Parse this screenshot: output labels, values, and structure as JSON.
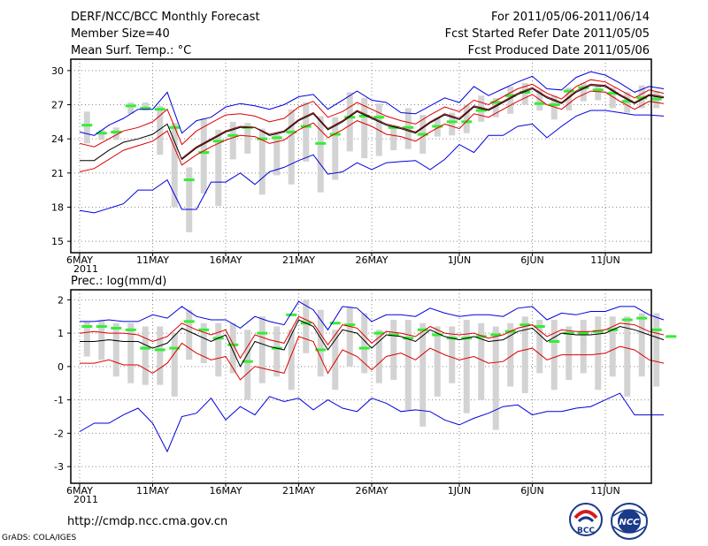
{
  "header": {
    "title": "DERF/NCC/BCC Monthly Forecast",
    "member": "Member Size=40",
    "variable": "Mean Surf. Temp.: °C",
    "period": "For 2011/05/06-2011/06/14",
    "started": "Fcst Started Refer Date 2011/05/05",
    "produced": "Fcst Produced Date 2011/05/06"
  },
  "footer": {
    "url": "http://cmdp.ncc.cma.gov.cn",
    "credit": "GrADS: COLA/IGES",
    "logo_bcc": "BCC",
    "logo_ncc": "NCC"
  },
  "colors": {
    "box": "#d3d3d3",
    "green": "#33ee33",
    "ensemble_mean": "#000000",
    "red": "#dd0000",
    "blue": "#0000dd"
  },
  "chart_data": [
    {
      "type": "line",
      "title": "Mean Surf. Temp.: °C",
      "ylim": [
        14,
        31
      ],
      "yticks": [
        15,
        18,
        21,
        24,
        27,
        30
      ],
      "xtick_labels": [
        {
          "day": 0,
          "label": "6MAY"
        },
        {
          "day": 5,
          "label": "11MAY"
        },
        {
          "day": 10,
          "label": "16MAY"
        },
        {
          "day": 15,
          "label": "21MAY"
        },
        {
          "day": 20,
          "label": "26MAY"
        },
        {
          "day": 26,
          "label": "1JUN"
        },
        {
          "day": 31,
          "label": "6JUN"
        },
        {
          "day": 36,
          "label": "11JUN"
        }
      ],
      "year_label": "2011",
      "series": [
        {
          "name": "black",
          "color": "#000000",
          "values": [
            22.1,
            22.1,
            23.0,
            23.7,
            24.0,
            24.4,
            25.3,
            22.2,
            23.2,
            23.9,
            24.6,
            25.0,
            25.0,
            24.3,
            24.6,
            25.6,
            26.2,
            24.8,
            25.5,
            26.4,
            25.8,
            25.2,
            24.9,
            24.5,
            25.4,
            26.1,
            25.7,
            26.8,
            26.5,
            27.2,
            27.9,
            28.4,
            27.6,
            27.1,
            28.1,
            28.7,
            28.6,
            27.8,
            27.1,
            27.8,
            27.6
          ]
        },
        {
          "name": "dark-red",
          "color": "#880000",
          "values": [
            null,
            null,
            null,
            null,
            null,
            null,
            null,
            22.3,
            23.3,
            24.0,
            24.7,
            25.1,
            25.0,
            24.4,
            24.7,
            25.7,
            26.3,
            24.9,
            25.6,
            26.5,
            25.9,
            25.3,
            25.0,
            24.6,
            25.5,
            26.2,
            25.8,
            26.9,
            26.6,
            27.3,
            28.0,
            28.5,
            27.7,
            27.2,
            28.2,
            28.8,
            28.7,
            27.9,
            27.2,
            27.9,
            27.7
          ]
        },
        {
          "name": "red-lower",
          "color": "#dd0000",
          "values": [
            21.1,
            21.4,
            22.2,
            23.0,
            23.4,
            23.8,
            24.7,
            21.7,
            22.6,
            23.3,
            23.9,
            24.3,
            24.2,
            23.6,
            23.9,
            24.8,
            25.4,
            24.1,
            24.8,
            25.6,
            25.1,
            24.4,
            24.2,
            23.8,
            24.6,
            25.3,
            24.9,
            26.2,
            25.9,
            26.6,
            27.3,
            27.9,
            27.0,
            26.6,
            27.6,
            28.2,
            28.1,
            27.3,
            26.6,
            27.3,
            27.1
          ]
        },
        {
          "name": "red-upper",
          "color": "#dd0000",
          "values": [
            23.6,
            23.3,
            24.0,
            24.7,
            25.0,
            25.5,
            26.6,
            23.5,
            24.7,
            25.4,
            26.1,
            26.2,
            26.0,
            25.5,
            25.8,
            26.8,
            27.3,
            25.9,
            26.4,
            27.2,
            26.6,
            26.0,
            25.6,
            25.3,
            26.1,
            26.8,
            26.4,
            27.4,
            27.0,
            27.7,
            28.4,
            28.8,
            28.0,
            27.5,
            28.6,
            29.2,
            29.0,
            28.3,
            27.6,
            28.3,
            28.0
          ]
        },
        {
          "name": "blue-lower",
          "color": "#0000dd",
          "values": [
            17.7,
            17.5,
            17.9,
            18.3,
            19.5,
            19.5,
            20.4,
            17.8,
            17.8,
            20.2,
            20.2,
            21.0,
            20.0,
            21.1,
            21.5,
            22.1,
            22.6,
            20.9,
            21.1,
            21.9,
            21.3,
            21.9,
            22.0,
            22.1,
            21.3,
            22.2,
            23.5,
            22.8,
            24.3,
            24.3,
            25.1,
            25.3,
            24.1,
            25.1,
            26.0,
            26.5,
            26.5,
            26.3,
            26.1,
            26.1,
            26.0
          ]
        },
        {
          "name": "blue-upper",
          "color": "#0000dd",
          "values": [
            24.6,
            24.3,
            25.2,
            25.8,
            26.6,
            26.6,
            28.1,
            24.5,
            25.6,
            25.9,
            26.8,
            27.1,
            26.9,
            26.6,
            27.0,
            27.7,
            27.9,
            26.6,
            27.4,
            28.2,
            27.4,
            27.2,
            26.3,
            26.2,
            26.9,
            27.6,
            27.2,
            28.6,
            27.8,
            28.4,
            29.0,
            29.5,
            28.4,
            28.3,
            29.4,
            29.9,
            29.6,
            28.9,
            28.1,
            28.6,
            28.4
          ]
        }
      ],
      "boxes": [
        {
          "low": 23.6,
          "high": 26.4
        },
        {
          "low": 23.9,
          "high": 24.8
        },
        {
          "low": 23.9,
          "high": 25.0
        },
        {
          "low": 26.2,
          "high": 27.2
        },
        {
          "low": 26.5,
          "high": 27.2
        },
        {
          "low": 22.6,
          "high": 26.9
        },
        {
          "low": 18.0,
          "high": 25.4
        },
        {
          "low": 15.8,
          "high": 21.5
        },
        {
          "low": 19.2,
          "high": 25.8
        },
        {
          "low": 18.1,
          "high": 24.8
        },
        {
          "low": 22.2,
          "high": 25.5
        },
        {
          "low": 22.7,
          "high": 25.4
        },
        {
          "low": 19.1,
          "high": 24.9
        },
        {
          "low": 20.8,
          "high": 24.4
        },
        {
          "low": 20.0,
          "high": 26.6
        },
        {
          "low": 22.0,
          "high": 27.2
        },
        {
          "low": 19.3,
          "high": 26.0
        },
        {
          "low": 20.4,
          "high": 25.9
        },
        {
          "low": 22.9,
          "high": 28.1
        },
        {
          "low": 22.3,
          "high": 27.6
        },
        {
          "low": 22.5,
          "high": 27.1
        },
        {
          "low": 23.0,
          "high": 25.1
        },
        {
          "low": 23.1,
          "high": 26.7
        },
        {
          "low": 22.7,
          "high": 26.1
        },
        {
          "low": 24.2,
          "high": 25.8
        },
        {
          "low": 24.3,
          "high": 26.3
        },
        {
          "low": 24.5,
          "high": 27.0
        },
        {
          "low": 25.5,
          "high": 27.8
        },
        {
          "low": 25.9,
          "high": 27.6
        },
        {
          "low": 26.2,
          "high": 28.6
        },
        {
          "low": 27.0,
          "high": 28.9
        },
        {
          "low": 26.5,
          "high": 28.3
        },
        {
          "low": 25.7,
          "high": 27.8
        },
        {
          "low": 26.5,
          "high": 28.5
        },
        {
          "low": 27.3,
          "high": 28.9
        },
        {
          "low": 27.4,
          "high": 28.7
        },
        {
          "low": 26.7,
          "high": 28.5
        },
        {
          "low": 26.3,
          "high": 28.1
        },
        {
          "low": 26.7,
          "high": 28.7
        },
        {
          "low": 26.7,
          "high": 28.2
        }
      ],
      "green_marks": [
        25.2,
        24.5,
        24.6,
        26.9,
        26.7,
        26.6,
        25.0,
        20.4,
        22.8,
        23.8,
        24.3,
        25.0,
        24.0,
        24.1,
        24.6,
        25.1,
        23.6,
        24.4,
        25.9,
        26.0,
        25.9,
        25.0,
        25.0,
        24.4,
        25.1,
        25.5,
        25.5,
        26.5,
        27.2,
        27.8,
        28.1,
        27.1,
        27.0,
        28.2,
        28.5,
        28.3,
        28.0,
        27.3,
        27.6,
        27.5
      ]
    },
    {
      "type": "line",
      "title": "Prec.: log(mm/d)",
      "ylim": [
        -3.5,
        2.3
      ],
      "yticks": [
        -3,
        -2,
        -1,
        0,
        1,
        2
      ],
      "xtick_labels": [
        {
          "day": 0,
          "label": "6MAY"
        },
        {
          "day": 5,
          "label": "11MAY"
        },
        {
          "day": 10,
          "label": "16MAY"
        },
        {
          "day": 15,
          "label": "21MAY"
        },
        {
          "day": 20,
          "label": "26MAY"
        },
        {
          "day": 26,
          "label": "1JUN"
        },
        {
          "day": 31,
          "label": "6JUN"
        },
        {
          "day": 36,
          "label": "11JUN"
        }
      ],
      "year_label": "2011",
      "series": [
        {
          "name": "black",
          "color": "#000000",
          "values": [
            0.75,
            0.75,
            0.8,
            0.75,
            0.75,
            0.55,
            0.7,
            1.15,
            0.95,
            0.75,
            0.95,
            0.0,
            0.75,
            0.6,
            0.5,
            1.4,
            1.2,
            0.5,
            1.1,
            1.0,
            0.55,
            0.95,
            0.9,
            0.75,
            1.1,
            0.9,
            0.8,
            0.9,
            0.75,
            0.8,
            1.05,
            1.15,
            0.75,
            1.0,
            0.95,
            0.95,
            1.0,
            1.2,
            1.1,
            0.95,
            0.8
          ]
        },
        {
          "name": "red-lower",
          "color": "#dd0000",
          "values": [
            0.1,
            0.1,
            0.2,
            0.05,
            0.05,
            -0.2,
            0.1,
            0.7,
            0.4,
            0.2,
            0.3,
            -0.4,
            0.0,
            -0.1,
            -0.2,
            0.9,
            0.75,
            -0.2,
            0.5,
            0.3,
            -0.1,
            0.3,
            0.4,
            0.2,
            0.55,
            0.35,
            0.2,
            0.3,
            0.1,
            0.15,
            0.45,
            0.55,
            0.2,
            0.35,
            0.35,
            0.35,
            0.4,
            0.6,
            0.5,
            0.2,
            0.1
          ]
        },
        {
          "name": "red-upper",
          "color": "#dd0000",
          "values": [
            1.0,
            1.05,
            1.0,
            1.0,
            0.95,
            0.75,
            0.9,
            1.3,
            1.1,
            0.95,
            1.1,
            0.25,
            0.95,
            0.8,
            0.7,
            1.5,
            1.3,
            0.65,
            1.25,
            1.15,
            0.7,
            1.05,
            1.0,
            0.9,
            1.2,
            1.0,
            0.95,
            1.0,
            0.85,
            0.95,
            1.15,
            1.25,
            0.9,
            1.1,
            1.05,
            1.05,
            1.1,
            1.3,
            1.25,
            1.05,
            0.95
          ]
        },
        {
          "name": "blue-lower",
          "color": "#0000dd",
          "values": [
            -1.95,
            -1.7,
            -1.7,
            -1.45,
            -1.25,
            -1.7,
            -2.55,
            -1.5,
            -1.4,
            -0.95,
            -1.6,
            -1.2,
            -1.45,
            -0.9,
            -1.05,
            -0.95,
            -1.3,
            -1.0,
            -1.25,
            -1.35,
            -0.95,
            -1.1,
            -1.35,
            -1.3,
            -1.35,
            -1.6,
            -1.75,
            -1.55,
            -1.4,
            -1.2,
            -1.15,
            -1.45,
            -1.35,
            -1.35,
            -1.25,
            -1.2,
            -1.0,
            -0.8,
            -1.45,
            -1.45,
            -1.45
          ]
        },
        {
          "name": "blue-upper",
          "color": "#0000dd",
          "values": [
            1.35,
            1.35,
            1.4,
            1.35,
            1.35,
            1.55,
            1.45,
            1.8,
            1.5,
            1.4,
            1.4,
            1.15,
            1.5,
            1.35,
            1.25,
            1.95,
            1.7,
            1.1,
            1.8,
            1.75,
            1.35,
            1.55,
            1.55,
            1.5,
            1.75,
            1.6,
            1.5,
            1.55,
            1.55,
            1.5,
            1.75,
            1.8,
            1.4,
            1.6,
            1.55,
            1.65,
            1.65,
            1.8,
            1.8,
            1.55,
            1.4
          ]
        }
      ],
      "boxes": [
        {
          "low": 0.3,
          "high": 1.35
        },
        {
          "low": 0.2,
          "high": 1.4
        },
        {
          "low": -0.3,
          "high": 1.3
        },
        {
          "low": -0.5,
          "high": 1.3
        },
        {
          "low": -0.55,
          "high": 1.2
        },
        {
          "low": -0.55,
          "high": 1.2
        },
        {
          "low": -0.9,
          "high": 1.0
        },
        {
          "low": 0.2,
          "high": 1.7
        },
        {
          "low": 0.1,
          "high": 1.3
        },
        {
          "low": -0.3,
          "high": 1.3
        },
        {
          "low": -0.2,
          "high": 1.3
        },
        {
          "low": -1.0,
          "high": 1.1
        },
        {
          "low": -0.5,
          "high": 1.5
        },
        {
          "low": -0.3,
          "high": 1.2
        },
        {
          "low": -0.7,
          "high": 1.1
        },
        {
          "low": 0.4,
          "high": 2.0
        },
        {
          "low": -0.3,
          "high": 1.7
        },
        {
          "low": -0.7,
          "high": 1.1
        },
        {
          "low": 0.0,
          "high": 1.8
        },
        {
          "low": -0.2,
          "high": 1.6
        },
        {
          "low": -0.5,
          "high": 1.1
        },
        {
          "low": -0.4,
          "high": 1.4
        },
        {
          "low": -1.3,
          "high": 1.4
        },
        {
          "low": -1.8,
          "high": 1.3
        },
        {
          "low": -0.9,
          "high": 1.2
        },
        {
          "low": -0.5,
          "high": 1.2
        },
        {
          "low": -1.4,
          "high": 1.4
        },
        {
          "low": -1.0,
          "high": 1.3
        },
        {
          "low": -1.9,
          "high": 1.2
        },
        {
          "low": -0.6,
          "high": 1.3
        },
        {
          "low": -0.8,
          "high": 1.5
        },
        {
          "low": -0.2,
          "high": 1.4
        },
        {
          "low": -0.7,
          "high": 1.4
        },
        {
          "low": -0.4,
          "high": 1.2
        },
        {
          "low": -0.2,
          "high": 1.4
        },
        {
          "low": -0.7,
          "high": 1.5
        },
        {
          "low": -0.3,
          "high": 1.5
        },
        {
          "low": -0.9,
          "high": 1.5
        },
        {
          "low": -0.3,
          "high": 1.6
        },
        {
          "low": -0.6,
          "high": 1.6
        }
      ],
      "green_marks": [
        1.2,
        1.2,
        1.15,
        1.1,
        0.55,
        0.5,
        0.55,
        1.35,
        1.1,
        0.85,
        0.65,
        0.15,
        1.0,
        0.55,
        1.55,
        1.3,
        0.5,
        1.3,
        1.25,
        0.55,
        1.0,
        0.95,
        0.85,
        1.1,
        0.95,
        0.85,
        0.85,
        0.9,
        0.95,
        1.05,
        1.25,
        1.2,
        0.75,
        1.0,
        1.0,
        1.05,
        1.1,
        1.4,
        1.45,
        1.1,
        0.9
      ]
    }
  ]
}
